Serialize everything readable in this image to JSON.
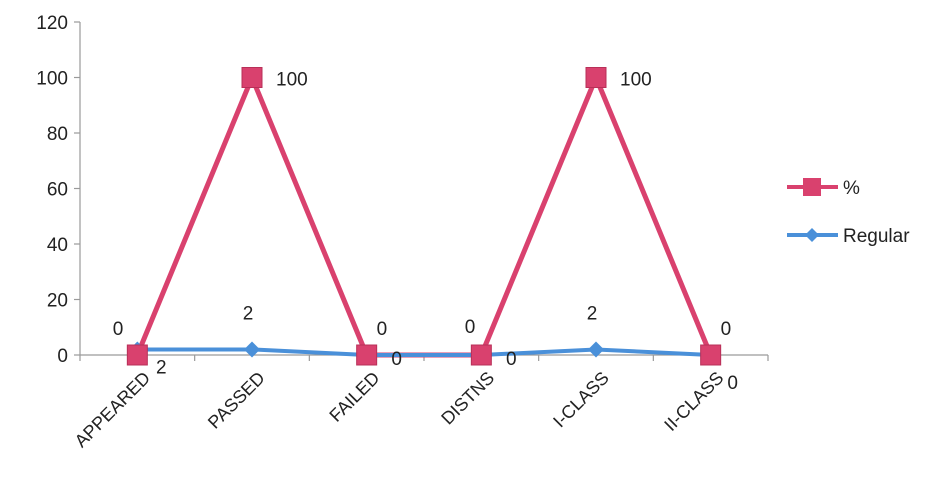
{
  "chart_data": {
    "type": "line",
    "title": "",
    "xlabel": "",
    "ylabel": "",
    "categories": [
      "APPEARED",
      "PASSED",
      "FAILED",
      "DISTNS",
      "I-CLASS",
      "II-CLASS"
    ],
    "ylim": [
      0,
      120
    ],
    "yticks": [
      "0",
      "20",
      "40",
      "60",
      "80",
      "100",
      "120"
    ],
    "grid": false,
    "legend_position": "right",
    "series": [
      {
        "name": "%",
        "values": [
          0,
          100,
          0,
          0,
          100,
          0
        ],
        "labels": [
          "0",
          "100",
          "0",
          "0",
          "100",
          "0"
        ],
        "color": "#d9416e",
        "marker": "square"
      },
      {
        "name": "Regular",
        "values": [
          2,
          2,
          0,
          0,
          2,
          0
        ],
        "labels": [
          "2",
          "2",
          "0",
          "0",
          "2",
          "0"
        ],
        "color": "#4a90d9",
        "marker": "diamond"
      }
    ]
  }
}
